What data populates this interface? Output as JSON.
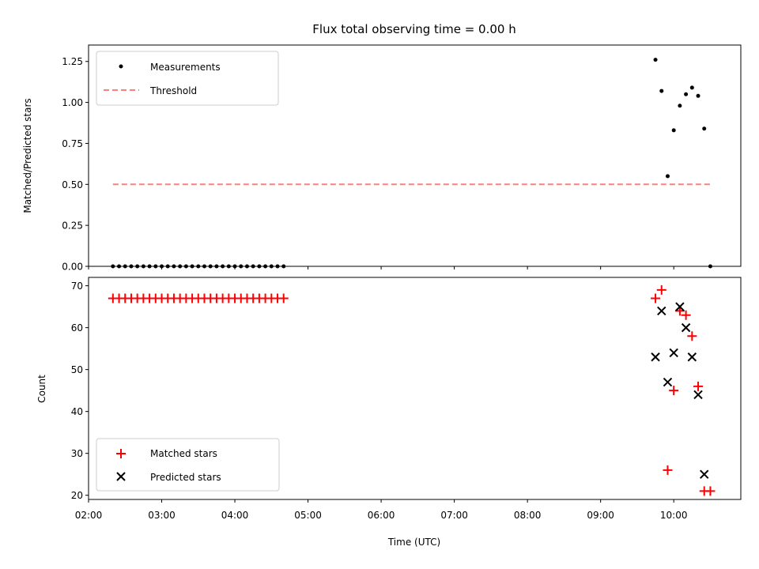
{
  "chart_data": [
    {
      "type": "scatter",
      "title": "Flux total observing time = 0.00 h",
      "xlabel": "",
      "ylabel": "Matched/Predicted stars",
      "ylim": [
        0,
        1.35
      ],
      "yticks": [
        "0.00",
        "0.25",
        "0.50",
        "0.75",
        "1.00",
        "1.25"
      ],
      "xlim": [
        "02:00",
        "10:55"
      ],
      "legend_position": "top-left",
      "series": [
        {
          "name": "Measurements",
          "style": "dot",
          "color": "#000000",
          "points": [
            [
              "02:20",
              0
            ],
            [
              "02:25",
              0
            ],
            [
              "02:30",
              0
            ],
            [
              "02:35",
              0
            ],
            [
              "02:40",
              0
            ],
            [
              "02:45",
              0
            ],
            [
              "02:50",
              0
            ],
            [
              "02:55",
              0
            ],
            [
              "03:00",
              0
            ],
            [
              "03:05",
              0
            ],
            [
              "03:10",
              0
            ],
            [
              "03:15",
              0
            ],
            [
              "03:20",
              0
            ],
            [
              "03:25",
              0
            ],
            [
              "03:30",
              0
            ],
            [
              "03:35",
              0
            ],
            [
              "03:40",
              0
            ],
            [
              "03:45",
              0
            ],
            [
              "03:50",
              0
            ],
            [
              "03:55",
              0
            ],
            [
              "04:00",
              0
            ],
            [
              "04:05",
              0
            ],
            [
              "04:10",
              0
            ],
            [
              "04:15",
              0
            ],
            [
              "04:20",
              0
            ],
            [
              "04:25",
              0
            ],
            [
              "04:30",
              0
            ],
            [
              "04:35",
              0
            ],
            [
              "04:40",
              0
            ],
            [
              "09:45",
              1.26
            ],
            [
              "09:50",
              1.07
            ],
            [
              "09:55",
              0.55
            ],
            [
              "10:00",
              0.83
            ],
            [
              "10:05",
              0.98
            ],
            [
              "10:10",
              1.05
            ],
            [
              "10:15",
              1.09
            ],
            [
              "10:20",
              1.04
            ],
            [
              "10:25",
              0.84
            ],
            [
              "10:30",
              0
            ]
          ]
        },
        {
          "name": "Threshold",
          "style": "dashed-line",
          "color": "#ff7f7f",
          "points": [
            [
              "02:20",
              0.5
            ],
            [
              "10:30",
              0.5
            ]
          ]
        }
      ]
    },
    {
      "type": "scatter",
      "xlabel": "Time (UTC)",
      "ylabel": "Count",
      "ylim": [
        19,
        72
      ],
      "yticks": [
        "20",
        "30",
        "40",
        "50",
        "60",
        "70"
      ],
      "xlim": [
        "02:00",
        "10:55"
      ],
      "xticks": [
        "02:00",
        "03:00",
        "04:00",
        "05:00",
        "06:00",
        "07:00",
        "08:00",
        "09:00",
        "10:00"
      ],
      "legend_position": "bottom-left",
      "series": [
        {
          "name": "Matched stars",
          "style": "plus",
          "color": "#ff0000",
          "points": [
            [
              "02:20",
              67
            ],
            [
              "02:25",
              67
            ],
            [
              "02:30",
              67
            ],
            [
              "02:35",
              67
            ],
            [
              "02:40",
              67
            ],
            [
              "02:45",
              67
            ],
            [
              "02:50",
              67
            ],
            [
              "02:55",
              67
            ],
            [
              "03:00",
              67
            ],
            [
              "03:05",
              67
            ],
            [
              "03:10",
              67
            ],
            [
              "03:15",
              67
            ],
            [
              "03:20",
              67
            ],
            [
              "03:25",
              67
            ],
            [
              "03:30",
              67
            ],
            [
              "03:35",
              67
            ],
            [
              "03:40",
              67
            ],
            [
              "03:45",
              67
            ],
            [
              "03:50",
              67
            ],
            [
              "03:55",
              67
            ],
            [
              "04:00",
              67
            ],
            [
              "04:05",
              67
            ],
            [
              "04:10",
              67
            ],
            [
              "04:15",
              67
            ],
            [
              "04:20",
              67
            ],
            [
              "04:25",
              67
            ],
            [
              "04:30",
              67
            ],
            [
              "04:35",
              67
            ],
            [
              "04:40",
              67
            ],
            [
              "09:45",
              67
            ],
            [
              "09:50",
              69
            ],
            [
              "09:55",
              26
            ],
            [
              "10:00",
              45
            ],
            [
              "10:05",
              64
            ],
            [
              "10:10",
              63
            ],
            [
              "10:15",
              58
            ],
            [
              "10:20",
              46
            ],
            [
              "10:25",
              21
            ],
            [
              "10:30",
              21
            ]
          ]
        },
        {
          "name": "Predicted stars",
          "style": "cross",
          "color": "#000000",
          "points": [
            [
              "09:45",
              53
            ],
            [
              "09:50",
              64
            ],
            [
              "09:55",
              47
            ],
            [
              "10:00",
              54
            ],
            [
              "10:05",
              65
            ],
            [
              "10:10",
              60
            ],
            [
              "10:15",
              53
            ],
            [
              "10:20",
              44
            ],
            [
              "10:25",
              25
            ]
          ]
        }
      ]
    }
  ]
}
